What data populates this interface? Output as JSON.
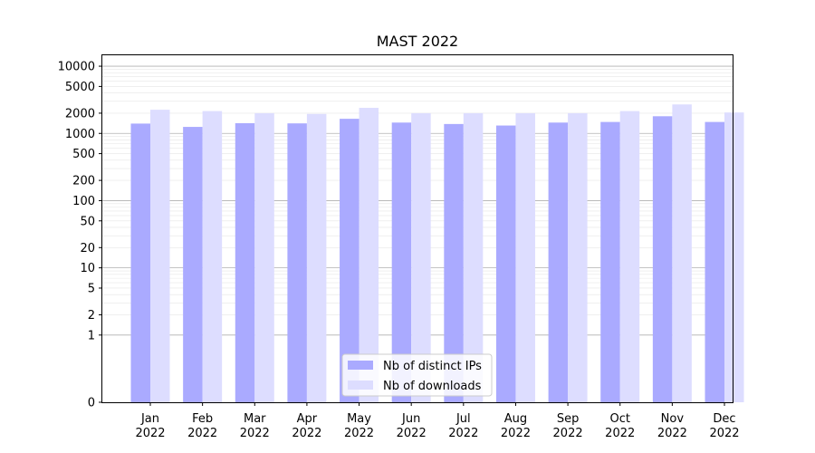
{
  "chart_data": {
    "type": "bar",
    "title": "MAST 2022",
    "xlabel": "",
    "ylabel": "",
    "y_scale": "symlog",
    "ylim": [
      0,
      15000
    ],
    "y_ticks": [
      0,
      1,
      2,
      5,
      10,
      20,
      50,
      100,
      200,
      500,
      1000,
      2000,
      5000,
      10000
    ],
    "grid": "y-axis, major and minor",
    "legend_position": "lower center",
    "categories": [
      "Jan\n2022",
      "Feb\n2022",
      "Mar\n2022",
      "Apr\n2022",
      "May\n2022",
      "Jun\n2022",
      "Jul\n2022",
      "Aug\n2022",
      "Sep\n2022",
      "Oct\n2022",
      "Nov\n2022",
      "Dec\n2022"
    ],
    "series": [
      {
        "name": "Nb of distinct IPs",
        "color": "#aaaaff",
        "values": [
          1400,
          1250,
          1420,
          1410,
          1650,
          1450,
          1380,
          1310,
          1450,
          1480,
          1800,
          1480
        ]
      },
      {
        "name": "Nb of downloads",
        "color": "#ddddff",
        "values": [
          2250,
          2150,
          2000,
          1950,
          2400,
          2000,
          2000,
          2000,
          2000,
          2150,
          2700,
          2050
        ]
      }
    ]
  }
}
